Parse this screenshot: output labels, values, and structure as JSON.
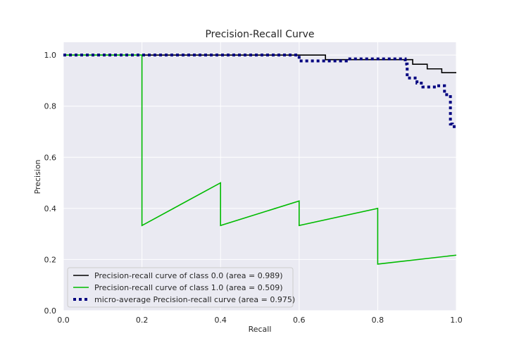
{
  "chart_data": {
    "type": "line",
    "title": "Precision-Recall Curve",
    "xlabel": "Recall",
    "ylabel": "Precision",
    "xlim": [
      0.0,
      1.0
    ],
    "ylim": [
      0.0,
      1.05
    ],
    "xticks": [
      "0.0",
      "0.2",
      "0.4",
      "0.6",
      "0.8",
      "1.0"
    ],
    "yticks": [
      "0.0",
      "0.2",
      "0.4",
      "0.6",
      "0.8",
      "1.0"
    ],
    "grid": true,
    "legend_position": "lower-left",
    "series": [
      {
        "name": "Precision-recall curve of class 0.0 (area = 0.989)",
        "color": "#000000",
        "style": "solid",
        "x": [
          0.0,
          0.667,
          0.667,
          0.889,
          0.889,
          0.926,
          0.926,
          0.963,
          0.963,
          1.0
        ],
        "y": [
          1.0,
          1.0,
          0.982,
          0.982,
          0.964,
          0.964,
          0.946,
          0.946,
          0.931,
          0.931
        ]
      },
      {
        "name": "Precision-recall curve of class 1.0 (area = 0.509)",
        "color": "#00bb00",
        "style": "solid",
        "x": [
          0.0,
          0.2,
          0.2,
          0.4,
          0.4,
          0.6,
          0.6,
          0.8,
          0.8,
          1.0
        ],
        "y": [
          1.0,
          1.0,
          0.333,
          0.5,
          0.333,
          0.429,
          0.333,
          0.4,
          0.182,
          0.217
        ]
      },
      {
        "name": "micro-average Precision-recall curve (area = 0.975)",
        "color": "#000080",
        "style": "dotted",
        "x": [
          0.0,
          0.6,
          0.6,
          0.72,
          0.72,
          0.87,
          0.87,
          0.875,
          0.875,
          0.9,
          0.9,
          0.915,
          0.915,
          0.95,
          0.95,
          0.97,
          0.97,
          0.985,
          0.985,
          0.99,
          0.99,
          1.0
        ],
        "y": [
          1.0,
          1.0,
          0.977,
          0.977,
          0.985,
          0.985,
          0.965,
          0.965,
          0.91,
          0.91,
          0.89,
          0.89,
          0.875,
          0.875,
          0.88,
          0.88,
          0.845,
          0.845,
          0.73,
          0.73,
          0.72,
          0.72
        ]
      }
    ]
  }
}
